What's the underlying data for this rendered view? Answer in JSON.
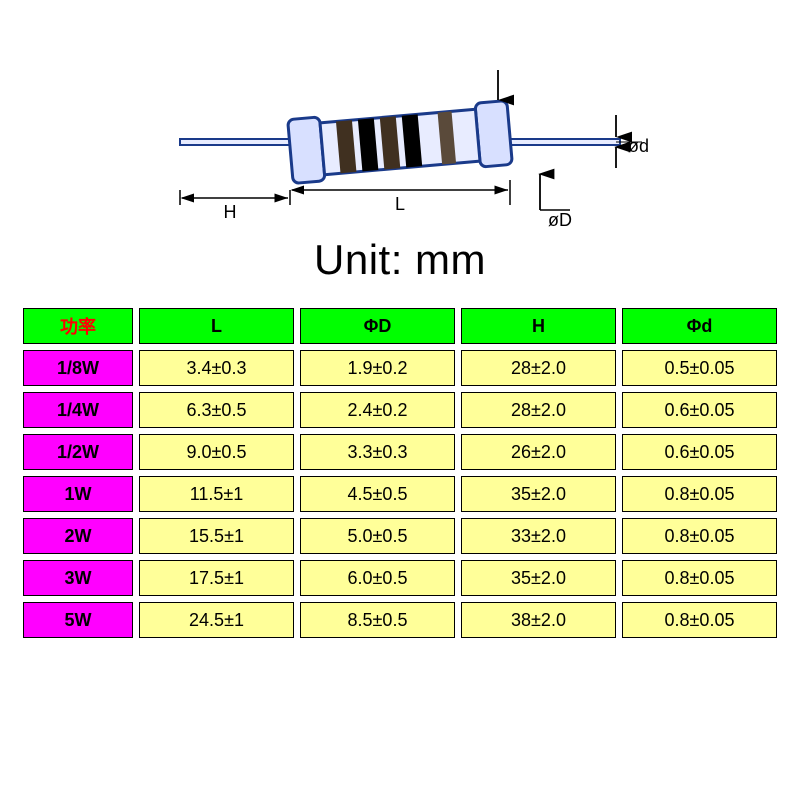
{
  "diagram": {
    "labels": {
      "H": "H",
      "L": "L",
      "phiD": "øD",
      "phid": "ød"
    },
    "unit_text": "Unit: mm",
    "colors": {
      "outline": "#1a3a8a",
      "body_fill": "#e8ecff",
      "cap_fill": "#d8e0ff",
      "band1": "#403020",
      "band2": "#000000",
      "band3": "#403020",
      "band4": "#000000",
      "band5": "#5a4a3a",
      "lead": "#1a3a8a",
      "dim_line": "#000000"
    }
  },
  "table": {
    "header_bg": "#00ff00",
    "power_header_color": "#ff0000",
    "power_cell_bg": "#ff00ff",
    "value_cell_bg": "#ffff99",
    "border_color": "#000000",
    "header_font_size": 18,
    "cell_font_size": 18,
    "columns": [
      {
        "key": "power",
        "label": "功率",
        "is_power": true
      },
      {
        "key": "L",
        "label": "L"
      },
      {
        "key": "phiD",
        "label": "ΦD"
      },
      {
        "key": "H",
        "label": "H"
      },
      {
        "key": "phid",
        "label": "Φd"
      }
    ],
    "rows": [
      {
        "power": "1/8W",
        "L": "3.4±0.3",
        "phiD": "1.9±0.2",
        "H": "28±2.0",
        "phid": "0.5±0.05"
      },
      {
        "power": "1/4W",
        "L": "6.3±0.5",
        "phiD": "2.4±0.2",
        "H": "28±2.0",
        "phid": "0.6±0.05"
      },
      {
        "power": "1/2W",
        "L": "9.0±0.5",
        "phiD": "3.3±0.3",
        "H": "26±2.0",
        "phid": "0.6±0.05"
      },
      {
        "power": "1W",
        "L": "11.5±1",
        "phiD": "4.5±0.5",
        "H": "35±2.0",
        "phid": "0.8±0.05"
      },
      {
        "power": "2W",
        "L": "15.5±1",
        "phiD": "5.0±0.5",
        "H": "33±2.0",
        "phid": "0.8±0.05"
      },
      {
        "power": "3W",
        "L": "17.5±1",
        "phiD": "6.0±0.5",
        "H": "35±2.0",
        "phid": "0.8±0.05"
      },
      {
        "power": "5W",
        "L": "24.5±1",
        "phiD": "8.5±0.5",
        "H": "38±2.0",
        "phid": "0.8±0.05"
      }
    ]
  }
}
